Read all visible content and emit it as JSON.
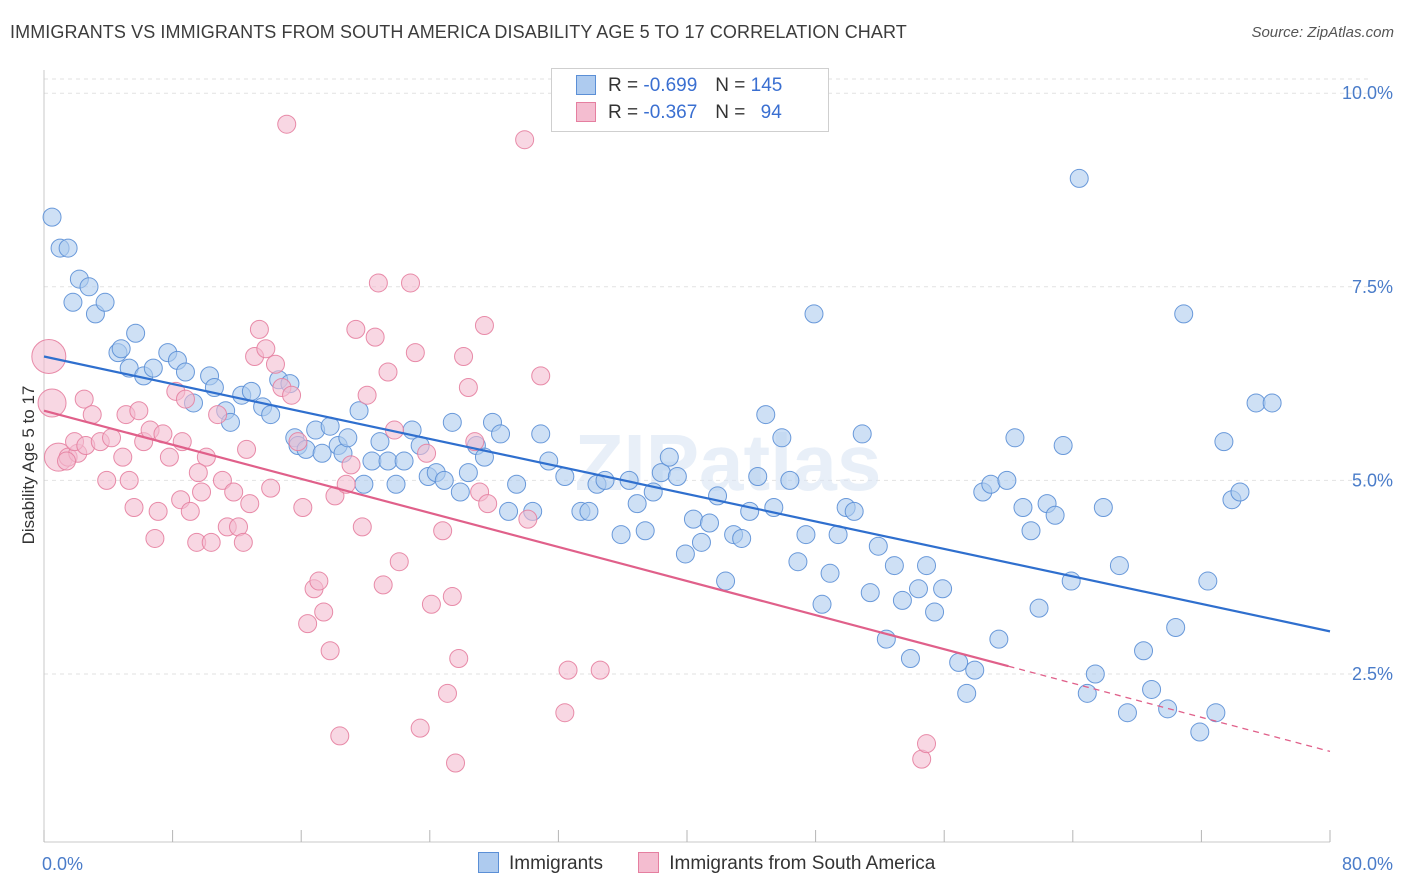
{
  "chart_data": {
    "type": "scatter",
    "title": "IMMIGRANTS VS IMMIGRANTS FROM SOUTH AMERICA DISABILITY AGE 5 TO 17 CORRELATION CHART",
    "source": "Source: ZipAtlas.com",
    "watermark": "ZIPatlas",
    "xlabel": "",
    "ylabel": "Disability Age 5 to 17",
    "xlim": [
      0,
      80
    ],
    "ylim": [
      0.33,
      10.3
    ],
    "x_tick_labels": [
      {
        "value": 0,
        "label": "0.0%"
      },
      {
        "value": 80,
        "label": "80.0%"
      }
    ],
    "x_minor_ticks": [
      0,
      8,
      16,
      24,
      32,
      40,
      48,
      56,
      64,
      72,
      80
    ],
    "y_ticks": [
      {
        "value": 2.5,
        "label": "2.5%"
      },
      {
        "value": 5.0,
        "label": "5.0%"
      },
      {
        "value": 7.5,
        "label": "7.5%"
      },
      {
        "value": 10.0,
        "label": "10.0%"
      }
    ],
    "grid": true,
    "legend": {
      "position": "top-center",
      "entries": [
        {
          "series": "Immigrants",
          "r_label": "R =",
          "r_value": "-0.699",
          "n_label": "N =",
          "n_value": "145"
        },
        {
          "series": "Immigrants from South America",
          "r_label": "R =",
          "r_value": "-0.367",
          "n_label": "N =",
          "n_value": "94"
        }
      ]
    },
    "series": [
      {
        "name": "Immigrants",
        "color": "#5b8fd6",
        "fill": "#aecbef",
        "line_color": "#2f6fce",
        "trend": {
          "x0": 0,
          "y0": 6.6,
          "x1": 80,
          "y1": 3.05
        },
        "points": [
          [
            0.5,
            8.4
          ],
          [
            1,
            8
          ],
          [
            1.5,
            8
          ],
          [
            2.2,
            7.6
          ],
          [
            2.8,
            7.5
          ],
          [
            1.8,
            7.3
          ],
          [
            3.2,
            7.15
          ],
          [
            3.8,
            7.3
          ],
          [
            4.6,
            6.65
          ],
          [
            4.8,
            6.7
          ],
          [
            5.3,
            6.45
          ],
          [
            5.7,
            6.9
          ],
          [
            6.2,
            6.35
          ],
          [
            6.8,
            6.45
          ],
          [
            7.7,
            6.65
          ],
          [
            8.3,
            6.55
          ],
          [
            8.8,
            6.4
          ],
          [
            9.3,
            6.0
          ],
          [
            10.3,
            6.35
          ],
          [
            10.6,
            6.2
          ],
          [
            11.3,
            5.9
          ],
          [
            11.6,
            5.75
          ],
          [
            12.3,
            6.1
          ],
          [
            12.9,
            6.15
          ],
          [
            13.6,
            5.95
          ],
          [
            14.1,
            5.85
          ],
          [
            14.6,
            6.3
          ],
          [
            15.3,
            6.25
          ],
          [
            15.6,
            5.55
          ],
          [
            15.8,
            5.45
          ],
          [
            16.3,
            5.4
          ],
          [
            16.9,
            5.65
          ],
          [
            17.3,
            5.35
          ],
          [
            17.8,
            5.7
          ],
          [
            18.3,
            5.45
          ],
          [
            18.6,
            5.35
          ],
          [
            18.9,
            5.55
          ],
          [
            19.6,
            5.9
          ],
          [
            19.9,
            4.95
          ],
          [
            20.4,
            5.25
          ],
          [
            20.9,
            5.5
          ],
          [
            21.4,
            5.25
          ],
          [
            21.9,
            4.95
          ],
          [
            22.4,
            5.25
          ],
          [
            22.9,
            5.65
          ],
          [
            23.4,
            5.45
          ],
          [
            23.9,
            5.05
          ],
          [
            24.4,
            5.1
          ],
          [
            24.9,
            5.0
          ],
          [
            25.4,
            5.75
          ],
          [
            25.9,
            4.85
          ],
          [
            26.4,
            5.1
          ],
          [
            26.9,
            5.45
          ],
          [
            27.4,
            5.3
          ],
          [
            27.9,
            5.75
          ],
          [
            28.4,
            5.6
          ],
          [
            28.9,
            4.6
          ],
          [
            29.4,
            4.95
          ],
          [
            30.4,
            4.6
          ],
          [
            30.9,
            5.6
          ],
          [
            31.4,
            5.25
          ],
          [
            32.4,
            5.05
          ],
          [
            33.4,
            4.6
          ],
          [
            33.9,
            4.6
          ],
          [
            34.4,
            4.95
          ],
          [
            34.9,
            5.0
          ],
          [
            35.9,
            4.3
          ],
          [
            36.4,
            5.0
          ],
          [
            36.9,
            4.7
          ],
          [
            37.4,
            4.35
          ],
          [
            37.9,
            4.85
          ],
          [
            38.4,
            5.1
          ],
          [
            38.9,
            5.3
          ],
          [
            39.4,
            5.05
          ],
          [
            39.9,
            4.05
          ],
          [
            40.4,
            4.5
          ],
          [
            40.9,
            4.2
          ],
          [
            41.4,
            4.45
          ],
          [
            41.9,
            4.8
          ],
          [
            42.4,
            3.7
          ],
          [
            42.9,
            4.3
          ],
          [
            43.4,
            4.25
          ],
          [
            43.9,
            4.6
          ],
          [
            44.4,
            5.05
          ],
          [
            44.9,
            5.85
          ],
          [
            45.4,
            4.65
          ],
          [
            45.9,
            5.55
          ],
          [
            46.4,
            5.0
          ],
          [
            46.9,
            3.95
          ],
          [
            47.4,
            4.3
          ],
          [
            47.9,
            7.15
          ],
          [
            48.4,
            3.4
          ],
          [
            48.9,
            3.8
          ],
          [
            49.4,
            4.3
          ],
          [
            49.9,
            4.65
          ],
          [
            50.4,
            4.6
          ],
          [
            50.9,
            5.6
          ],
          [
            51.4,
            3.55
          ],
          [
            51.9,
            4.15
          ],
          [
            52.4,
            2.95
          ],
          [
            52.9,
            3.9
          ],
          [
            53.4,
            3.45
          ],
          [
            53.9,
            2.7
          ],
          [
            54.4,
            3.6
          ],
          [
            54.9,
            3.9
          ],
          [
            55.4,
            3.3
          ],
          [
            55.9,
            3.6
          ],
          [
            56.9,
            2.65
          ],
          [
            57.4,
            2.25
          ],
          [
            57.9,
            2.55
          ],
          [
            58.4,
            4.85
          ],
          [
            58.9,
            4.95
          ],
          [
            59.4,
            2.95
          ],
          [
            59.9,
            5.0
          ],
          [
            60.4,
            5.55
          ],
          [
            60.9,
            4.65
          ],
          [
            61.4,
            4.35
          ],
          [
            61.9,
            3.35
          ],
          [
            62.4,
            4.7
          ],
          [
            62.9,
            4.55
          ],
          [
            63.4,
            5.45
          ],
          [
            63.9,
            3.7
          ],
          [
            64.4,
            8.9
          ],
          [
            64.9,
            2.25
          ],
          [
            65.4,
            2.5
          ],
          [
            65.9,
            4.65
          ],
          [
            66.9,
            3.9
          ],
          [
            67.4,
            2.0
          ],
          [
            68.4,
            2.8
          ],
          [
            68.9,
            2.3
          ],
          [
            69.9,
            2.05
          ],
          [
            70.4,
            3.1
          ],
          [
            70.9,
            7.15
          ],
          [
            71.9,
            1.75
          ],
          [
            72.4,
            3.7
          ],
          [
            72.9,
            2.0
          ],
          [
            73.4,
            5.5
          ],
          [
            73.9,
            4.75
          ],
          [
            74.4,
            4.85
          ],
          [
            75.4,
            6.0
          ],
          [
            76.4,
            6.0
          ]
        ]
      },
      {
        "name": "Immigrants from South America",
        "color": "#e57fa0",
        "fill": "#f4bdd0",
        "line_color": "#e0608a",
        "trend": {
          "x0": 0,
          "y0": 5.9,
          "x1": 60,
          "y1": 2.6
        },
        "trend_dashed": {
          "x0": 60,
          "y0": 2.6,
          "x1": 80,
          "y1": 1.5
        },
        "points": [
          [
            0.3,
            6.6
          ],
          [
            0.5,
            6.0
          ],
          [
            0.9,
            5.3
          ],
          [
            1.5,
            5.3
          ],
          [
            2.1,
            5.35
          ],
          [
            1.4,
            5.25
          ],
          [
            1.9,
            5.5
          ],
          [
            2.6,
            5.45
          ],
          [
            2.5,
            6.05
          ],
          [
            3.0,
            5.85
          ],
          [
            3.5,
            5.5
          ],
          [
            3.9,
            5.0
          ],
          [
            4.2,
            5.55
          ],
          [
            4.9,
            5.3
          ],
          [
            5.1,
            5.85
          ],
          [
            5.3,
            5.0
          ],
          [
            5.6,
            4.65
          ],
          [
            5.9,
            5.9
          ],
          [
            6.2,
            5.5
          ],
          [
            6.6,
            5.65
          ],
          [
            6.9,
            4.25
          ],
          [
            7.1,
            4.6
          ],
          [
            7.4,
            5.6
          ],
          [
            7.8,
            5.3
          ],
          [
            8.2,
            6.15
          ],
          [
            8.5,
            4.75
          ],
          [
            8.8,
            6.05
          ],
          [
            9.1,
            4.6
          ],
          [
            9.5,
            4.2
          ],
          [
            9.8,
            4.85
          ],
          [
            10.1,
            5.3
          ],
          [
            10.4,
            4.2
          ],
          [
            10.8,
            5.85
          ],
          [
            11.1,
            5.0
          ],
          [
            11.4,
            4.4
          ],
          [
            11.8,
            4.85
          ],
          [
            12.1,
            4.4
          ],
          [
            12.4,
            4.2
          ],
          [
            12.8,
            4.7
          ],
          [
            13.1,
            6.6
          ],
          [
            13.4,
            6.95
          ],
          [
            13.8,
            6.7
          ],
          [
            14.1,
            4.9
          ],
          [
            14.4,
            6.5
          ],
          [
            14.8,
            6.2
          ],
          [
            15.1,
            9.6
          ],
          [
            15.4,
            6.1
          ],
          [
            15.8,
            5.5
          ],
          [
            16.1,
            4.65
          ],
          [
            16.4,
            3.15
          ],
          [
            16.8,
            3.6
          ],
          [
            17.1,
            3.7
          ],
          [
            17.4,
            3.3
          ],
          [
            17.8,
            2.8
          ],
          [
            18.1,
            4.8
          ],
          [
            18.4,
            1.7
          ],
          [
            18.8,
            4.95
          ],
          [
            19.1,
            5.2
          ],
          [
            19.4,
            6.95
          ],
          [
            19.8,
            4.4
          ],
          [
            20.1,
            6.1
          ],
          [
            20.8,
            7.55
          ],
          [
            20.6,
            6.85
          ],
          [
            21.1,
            3.65
          ],
          [
            21.4,
            6.4
          ],
          [
            21.8,
            5.65
          ],
          [
            22.1,
            3.95
          ],
          [
            22.8,
            7.55
          ],
          [
            23.1,
            6.65
          ],
          [
            23.4,
            1.8
          ],
          [
            23.8,
            5.35
          ],
          [
            24.1,
            3.4
          ],
          [
            24.8,
            4.35
          ],
          [
            25.1,
            2.25
          ],
          [
            25.4,
            3.5
          ],
          [
            25.8,
            2.7
          ],
          [
            25.6,
            1.35
          ],
          [
            26.4,
            6.2
          ],
          [
            26.1,
            6.6
          ],
          [
            26.8,
            5.5
          ],
          [
            27.4,
            7.0
          ],
          [
            27.1,
            4.85
          ],
          [
            27.6,
            4.7
          ],
          [
            29.9,
            9.4
          ],
          [
            30.1,
            4.5
          ],
          [
            30.9,
            6.35
          ],
          [
            32.4,
            2.0
          ],
          [
            32.6,
            2.55
          ],
          [
            34.6,
            2.55
          ],
          [
            54.6,
            1.4
          ],
          [
            54.9,
            1.6
          ],
          [
            8.6,
            5.5
          ],
          [
            9.6,
            5.1
          ],
          [
            12.6,
            5.4
          ]
        ]
      }
    ]
  }
}
